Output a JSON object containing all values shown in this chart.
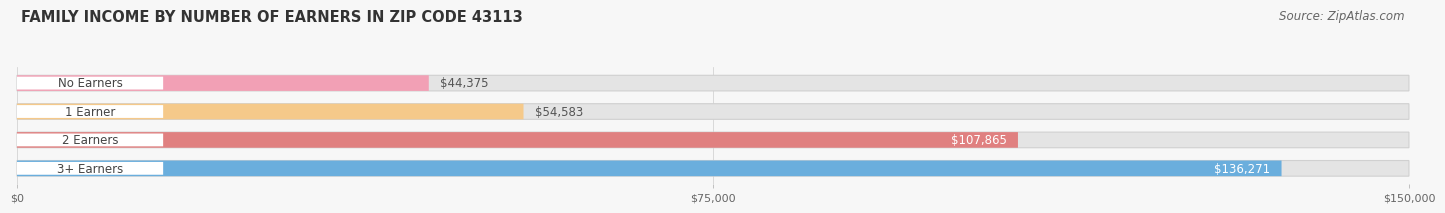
{
  "title": "FAMILY INCOME BY NUMBER OF EARNERS IN ZIP CODE 43113",
  "source": "Source: ZipAtlas.com",
  "categories": [
    "No Earners",
    "1 Earner",
    "2 Earners",
    "3+ Earners"
  ],
  "values": [
    44375,
    54583,
    107865,
    136271
  ],
  "bar_colors": [
    "#f2a0b5",
    "#f5c98a",
    "#e08080",
    "#6aaedd"
  ],
  "value_labels": [
    "$44,375",
    "$54,583",
    "$107,865",
    "$136,271"
  ],
  "value_label_inside": [
    false,
    false,
    true,
    true
  ],
  "xlim": [
    0,
    150000
  ],
  "xticks": [
    0,
    75000,
    150000
  ],
  "xtick_labels": [
    "$0",
    "$75,000",
    "$150,000"
  ],
  "title_fontsize": 10.5,
  "source_fontsize": 8.5,
  "label_fontsize": 8.5,
  "value_fontsize": 8.5,
  "background_color": "#f7f7f7",
  "bar_bg_color": "#e4e4e4",
  "white_pill_color": "#ffffff",
  "bar_height": 0.55,
  "bar_gap": 0.45
}
